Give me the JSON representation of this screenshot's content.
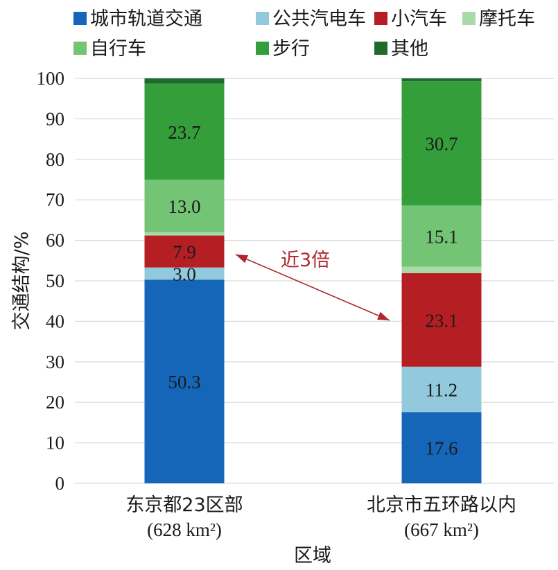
{
  "chart_data": {
    "type": "bar",
    "stacked": true,
    "categories": [
      "东京都23区部",
      "北京市五环路以内"
    ],
    "category_sublabels": [
      "(628 km²)",
      "(667 km²)"
    ],
    "xlabel": "区域",
    "ylabel": "交通结构/%",
    "ylim": [
      0,
      100
    ],
    "yticks": [
      0,
      10,
      20,
      30,
      40,
      50,
      60,
      70,
      80,
      90,
      100
    ],
    "grid": true,
    "legend_position": "top",
    "series": [
      {
        "name": "城市轨道交通",
        "color": "#1565b8",
        "values": [
          50.3,
          17.6
        ],
        "labels": [
          "50.3",
          "17.6"
        ]
      },
      {
        "name": "公共汽电车",
        "color": "#92c9dc",
        "values": [
          3.0,
          11.2
        ],
        "labels": [
          "3.0",
          "11.2"
        ]
      },
      {
        "name": "小汽车",
        "color": "#b51f24",
        "values": [
          7.9,
          23.1
        ],
        "labels": [
          "7.9",
          "23.1"
        ]
      },
      {
        "name": "摩托车",
        "color": "#a9d9a7",
        "values": [
          0.8,
          1.6
        ],
        "labels": [
          "",
          ""
        ]
      },
      {
        "name": "自行车",
        "color": "#74c476",
        "values": [
          13.0,
          15.1
        ],
        "labels": [
          "13.0",
          "15.1"
        ]
      },
      {
        "name": "步行",
        "color": "#349e3a",
        "values": [
          23.7,
          30.7
        ],
        "labels": [
          "23.7",
          "30.7"
        ]
      },
      {
        "name": "其他",
        "color": "#1f6a2e",
        "values": [
          1.3,
          0.7
        ],
        "labels": [
          "",
          ""
        ]
      }
    ],
    "annotation": {
      "text": "近3倍",
      "color": "#b0272d"
    }
  }
}
